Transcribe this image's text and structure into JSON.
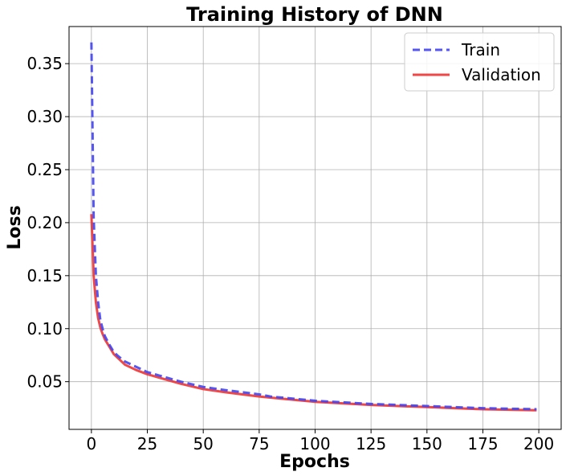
{
  "chart_data": {
    "type": "line",
    "title": "Training History of DNN",
    "xlabel": "Epochs",
    "ylabel": "Loss",
    "xlim": [
      -10,
      210
    ],
    "ylim": [
      0.005,
      0.385
    ],
    "xticks": [
      0,
      25,
      50,
      75,
      100,
      125,
      150,
      175,
      200
    ],
    "yticks": [
      0.05,
      0.1,
      0.15,
      0.2,
      0.25,
      0.3,
      0.35
    ],
    "ytick_labels": [
      "0.05",
      "0.10",
      "0.15",
      "0.20",
      "0.25",
      "0.30",
      "0.35"
    ],
    "grid": true,
    "legend_position": "top-right",
    "series": [
      {
        "name": "Train",
        "color": "#4444ee",
        "style": "dashed",
        "x": [
          0,
          1,
          2,
          3,
          4,
          5,
          6,
          8,
          10,
          12,
          15,
          20,
          25,
          30,
          40,
          50,
          60,
          75,
          80,
          90,
          100,
          125,
          150,
          175,
          199
        ],
        "y": [
          0.37,
          0.205,
          0.15,
          0.125,
          0.108,
          0.1,
          0.093,
          0.085,
          0.078,
          0.074,
          0.069,
          0.064,
          0.059,
          0.056,
          0.05,
          0.045,
          0.042,
          0.038,
          0.036,
          0.034,
          0.032,
          0.029,
          0.027,
          0.025,
          0.024
        ]
      },
      {
        "name": "Validation",
        "color": "#ee3333",
        "style": "solid",
        "x": [
          0,
          1,
          2,
          3,
          4,
          5,
          6,
          8,
          10,
          12,
          15,
          20,
          25,
          30,
          40,
          50,
          60,
          75,
          80,
          90,
          100,
          125,
          150,
          175,
          199
        ],
        "y": [
          0.208,
          0.15,
          0.125,
          0.11,
          0.101,
          0.095,
          0.09,
          0.083,
          0.076,
          0.072,
          0.066,
          0.061,
          0.057,
          0.054,
          0.048,
          0.043,
          0.04,
          0.036,
          0.035,
          0.033,
          0.031,
          0.028,
          0.026,
          0.024,
          0.023
        ]
      }
    ]
  }
}
